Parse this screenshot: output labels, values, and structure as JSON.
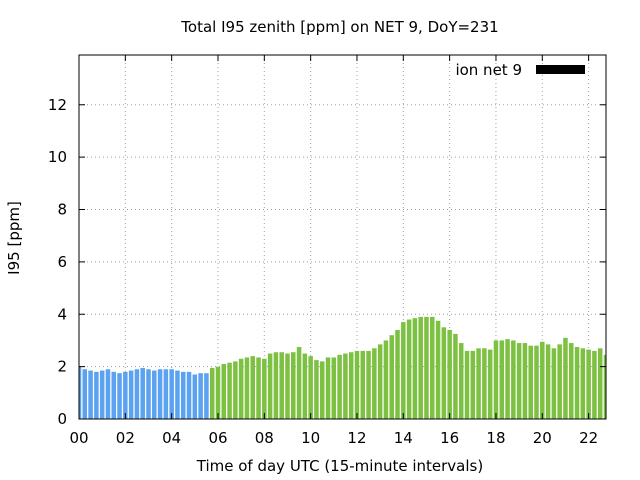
{
  "chart_data": {
    "type": "bar",
    "title": "Total I95 zenith [ppm] on NET 9, DoY=231",
    "xlabel": "Time of day UTC (15-minute intervals)",
    "ylabel": "I95 [ppm]",
    "xlim": [
      0,
      22.75
    ],
    "ylim": [
      0,
      13.9
    ],
    "x_ticks": [
      "00",
      "02",
      "04",
      "06",
      "08",
      "10",
      "12",
      "14",
      "16",
      "18",
      "20",
      "22"
    ],
    "y_ticks": [
      "0",
      "2",
      "4",
      "6",
      "8",
      "10",
      "12"
    ],
    "grid": true,
    "legend": {
      "label": "ion net 9",
      "placement": "top-right"
    },
    "colors": {
      "early": "#5ba3f0",
      "late": "#7dc142",
      "legend_swatch": "#000000"
    },
    "switch_hour": 5.75,
    "x_start_hour": 0,
    "interval_hours": 0.25,
    "values": [
      2.0,
      1.9,
      1.85,
      1.8,
      1.85,
      1.9,
      1.8,
      1.75,
      1.8,
      1.85,
      1.9,
      1.95,
      1.9,
      1.85,
      1.9,
      1.9,
      1.9,
      1.85,
      1.8,
      1.8,
      1.7,
      1.75,
      1.75,
      1.95,
      2.0,
      2.1,
      2.15,
      2.2,
      2.3,
      2.35,
      2.4,
      2.35,
      2.3,
      2.5,
      2.55,
      2.55,
      2.5,
      2.55,
      2.75,
      2.5,
      2.4,
      2.25,
      2.2,
      2.35,
      2.35,
      2.45,
      2.5,
      2.55,
      2.6,
      2.6,
      2.6,
      2.7,
      2.85,
      3.0,
      3.2,
      3.4,
      3.7,
      3.8,
      3.85,
      3.9,
      3.9,
      3.9,
      3.75,
      3.5,
      3.4,
      3.25,
      2.9,
      2.6,
      2.6,
      2.7,
      2.7,
      2.65,
      3.0,
      3.0,
      3.05,
      3.0,
      2.9,
      2.9,
      2.8,
      2.8,
      2.95,
      2.85,
      2.7,
      2.85,
      3.1,
      2.9,
      2.75,
      2.7,
      2.65,
      2.6,
      2.7,
      2.45,
      2.55
    ]
  }
}
